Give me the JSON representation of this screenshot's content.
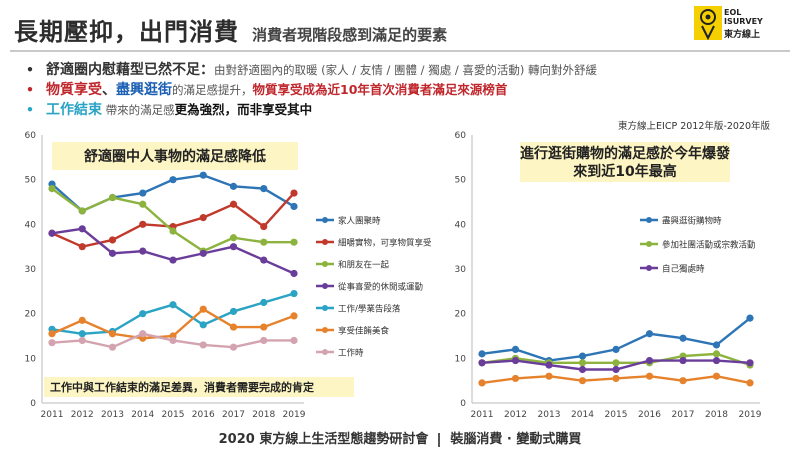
{
  "header": {
    "title": "長期壓抑，出門消費",
    "subtitle": "消費者現階段感到滿足的要素",
    "logo_line1": "EOL",
    "logo_line2": "ISURVEY",
    "logo_line3": "東方線上"
  },
  "bullets": [
    {
      "dot": "•",
      "head": "舒適圈内慰藉型已然不足：",
      "body": "由對舒適圈內的取暖 (家人 / 友情 / 團體 / 獨處 / 喜愛的活動) 轉向對外舒緩"
    },
    {
      "dot": "•",
      "head_a": "物質享受",
      "sep": "、",
      "head_b": "盡興逛街",
      "mid": "的滿足感提升，",
      "tail": "物質享受成為近10年首次消費者滿足來源榜首"
    },
    {
      "dot": "•",
      "head": "工作結束",
      "mid": " 帶來的滿足感",
      "tail": "更為強烈，而非享受其中"
    }
  ],
  "source": "東方線上EICP 2012年版-2020年版",
  "footer": {
    "left": "2020 東方線上生活型態趨勢研討會",
    "right": "裝腦消費 · 變動式購買"
  },
  "colors": {
    "home": "#2e75b6",
    "diet": "#c0392b",
    "friends": "#8db33f",
    "hobby": "#6a3d9a",
    "workend": "#2aa3c4",
    "food": "#e6822b",
    "work": "#d4a3b0"
  },
  "chart_data": [
    {
      "type": "line",
      "title": "舒適圈中人事物的滿足感降低",
      "note": "工作中與工作結束的滿足差異，消費者需要完成的肯定",
      "x": [
        "2011",
        "2012",
        "2013",
        "2014",
        "2015",
        "2016",
        "2017",
        "2018",
        "2019"
      ],
      "ylim": [
        0,
        60
      ],
      "yticks": [
        0,
        10,
        20,
        30,
        40,
        50,
        60
      ],
      "legend_position": "right",
      "series": [
        {
          "name": "家人團聚時",
          "color": "#2e75b6",
          "values": [
            49,
            43,
            46,
            47,
            50,
            51,
            48.5,
            48,
            44
          ]
        },
        {
          "name": "細嚼實物，可享物質享受",
          "color": "#c0392b",
          "values": [
            38,
            35,
            36.5,
            40,
            39.5,
            41.5,
            44.5,
            39.5,
            47
          ]
        },
        {
          "name": "和朋友在一起",
          "color": "#8db33f",
          "values": [
            48,
            43,
            46,
            44.5,
            38.5,
            34,
            37,
            36,
            36
          ]
        },
        {
          "name": "從事喜愛的休閒或運動",
          "color": "#6a3d9a",
          "values": [
            38,
            39,
            33.5,
            34,
            32,
            33.5,
            35,
            32,
            29
          ]
        },
        {
          "name": "工作/學業告段落",
          "color": "#2aa3c4",
          "values": [
            16.5,
            15.5,
            16,
            20,
            22,
            17.5,
            20.5,
            22.5,
            24.5
          ]
        },
        {
          "name": "享受佳餚美食",
          "color": "#e6822b",
          "values": [
            15.5,
            18.5,
            15.5,
            14.5,
            15,
            21,
            17,
            17,
            19.5
          ]
        },
        {
          "name": "工作時",
          "color": "#d4a3b0",
          "values": [
            13.5,
            14,
            12.5,
            15.5,
            14,
            13,
            12.5,
            14,
            14
          ]
        }
      ]
    },
    {
      "type": "line",
      "title": "進行逛街購物的滿足感於今年爆發\n來到近10年最高",
      "x": [
        "2011",
        "2012",
        "2013",
        "2014",
        "2015",
        "2016",
        "2017",
        "2018",
        "2019"
      ],
      "ylim": [
        0,
        60
      ],
      "yticks": [
        0,
        10,
        20,
        30,
        40,
        50,
        60
      ],
      "legend_position": "right",
      "series": [
        {
          "name": "盡興逛街購物時",
          "color": "#2e75b6",
          "values": [
            11,
            12,
            9.5,
            10.5,
            12,
            15.5,
            14.5,
            13,
            19
          ]
        },
        {
          "name": "參加社團活動或宗教活動",
          "color": "#8db33f",
          "values": [
            9,
            10,
            9,
            9,
            9,
            9,
            10.5,
            11,
            8.5
          ]
        },
        {
          "name": "自己獨處時",
          "color": "#6a3d9a",
          "values": [
            9,
            9.5,
            8.5,
            7.5,
            7.5,
            9.5,
            9.5,
            9.5,
            9
          ]
        },
        {
          "name": "",
          "color": "#e6822b",
          "values": [
            4.5,
            5.5,
            6,
            5,
            5.5,
            6,
            5,
            6,
            4.5
          ]
        }
      ]
    }
  ]
}
